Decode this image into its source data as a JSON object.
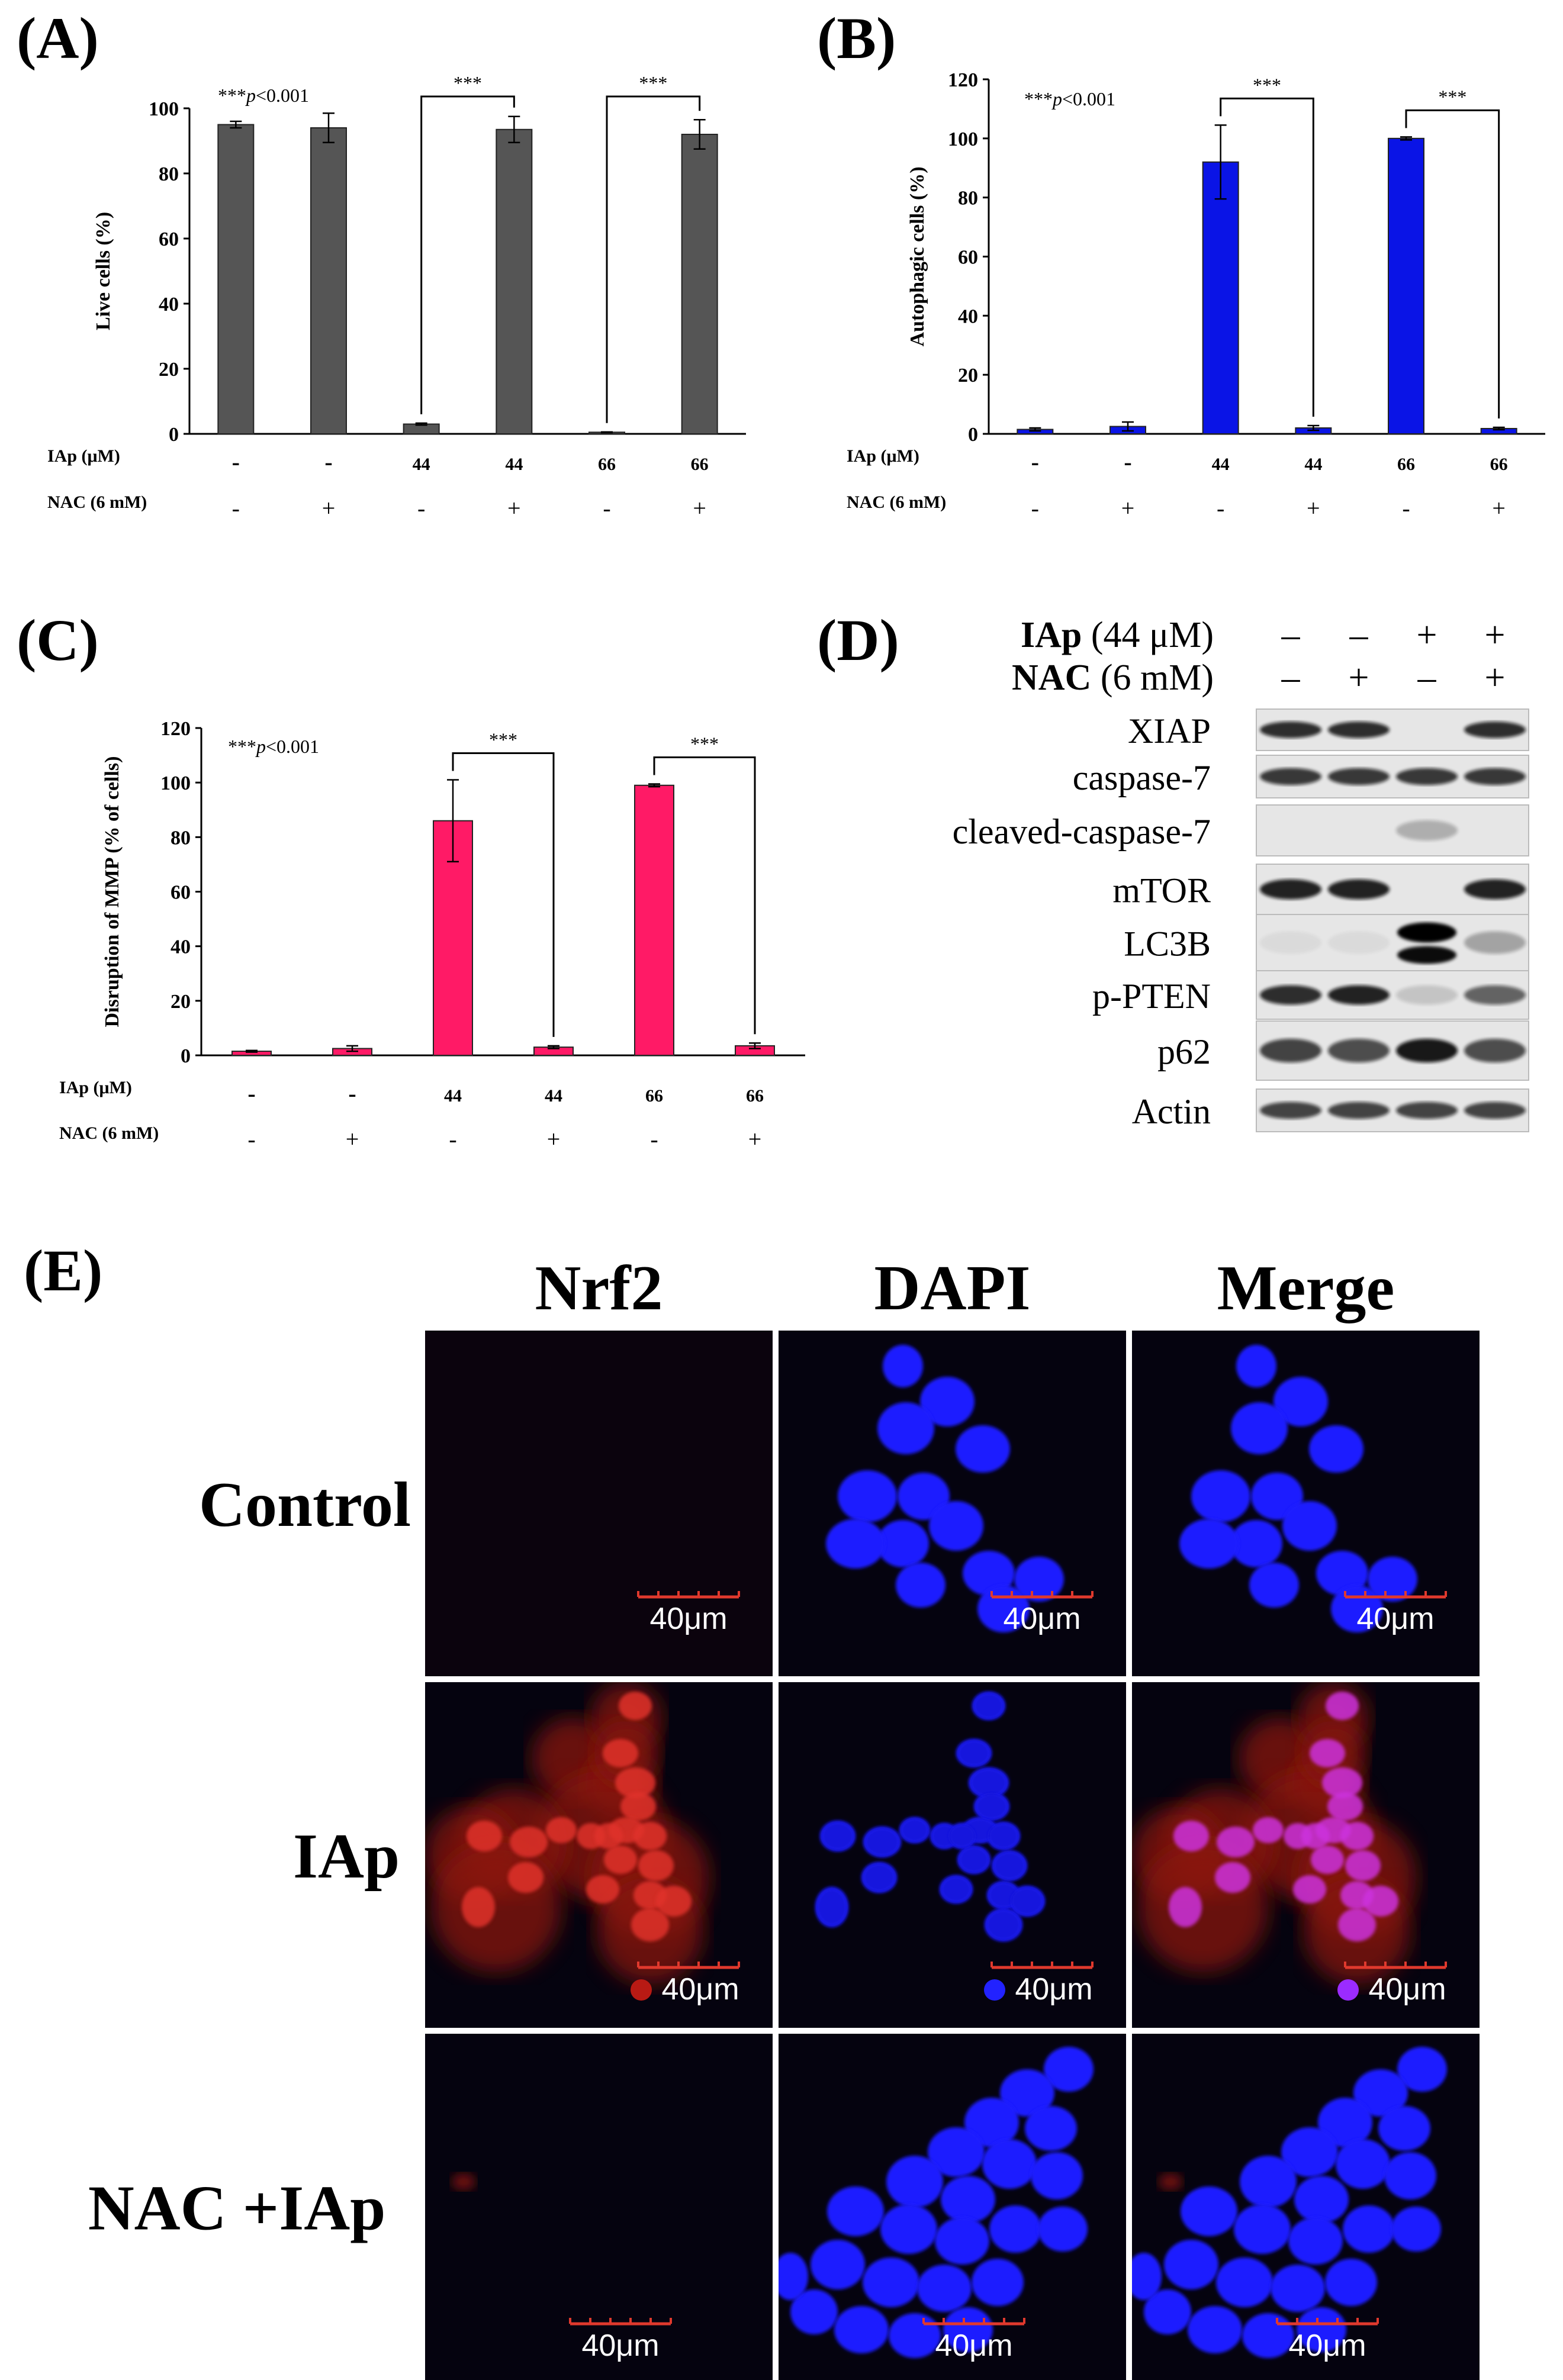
{
  "colors": {
    "panel_a_bar": "#555555",
    "panel_b_bar": "#0a14e6",
    "panel_c_bar": "#ff1a66",
    "scale_bar": "#e0392d",
    "micro_bg": "#05030f",
    "nucleus_blue": "#1a1aff",
    "nrf2_red": "#c8221e",
    "merge_purple": "#8a2be2"
  },
  "chart_data": [
    {
      "panel": "(A)",
      "type": "bar",
      "ylabel": "Live cells (%)",
      "ylim": [
        0,
        100
      ],
      "yticks": [
        0,
        20,
        40,
        60,
        80,
        100
      ],
      "row_labels": [
        "IAp  (μM)",
        "NAC (6 mM)"
      ],
      "iap": [
        "-",
        "-",
        "44",
        "44",
        "66",
        "66"
      ],
      "nac": [
        "-",
        "+",
        "-",
        "+",
        "-",
        "+"
      ],
      "values": [
        95,
        94,
        3,
        93.5,
        0.5,
        92
      ],
      "errors": [
        1,
        4.5,
        0.3,
        4,
        0.1,
        4.5
      ],
      "annotation": "***p<0.001",
      "sig_label": "***",
      "brackets": [
        [
          2,
          3
        ],
        [
          4,
          5
        ]
      ]
    },
    {
      "panel": "(B)",
      "type": "bar",
      "ylabel": "Autophagic cells (%)",
      "ylim": [
        0,
        120
      ],
      "yticks": [
        0,
        20,
        40,
        60,
        80,
        100,
        120
      ],
      "row_labels": [
        "IAp  (μM)",
        "NAC (6 mM)"
      ],
      "iap": [
        "-",
        "-",
        "44",
        "44",
        "66",
        "66"
      ],
      "nac": [
        "-",
        "+",
        "-",
        "+",
        "-",
        "+"
      ],
      "values": [
        1.5,
        2.5,
        92,
        2,
        100,
        1.8
      ],
      "errors": [
        0.5,
        1.5,
        12.5,
        0.8,
        0.5,
        0.4
      ],
      "annotation": "***p<0.001",
      "sig_label": "***",
      "brackets": [
        [
          2,
          3
        ],
        [
          4,
          5
        ]
      ]
    },
    {
      "panel": "(C)",
      "type": "bar",
      "ylabel": "Disruption of MMP (% of cells)",
      "ylim": [
        0,
        120
      ],
      "yticks": [
        0,
        20,
        40,
        60,
        80,
        100,
        120
      ],
      "row_labels": [
        "IAp (μM)",
        "NAC (6 mM)"
      ],
      "iap": [
        "-",
        "-",
        "44",
        "44",
        "66",
        "66"
      ],
      "nac": [
        "-",
        "+",
        "-",
        "+",
        "-",
        "+"
      ],
      "values": [
        1.5,
        2.5,
        86,
        3,
        99,
        3.5
      ],
      "errors": [
        0.3,
        1,
        15,
        0.5,
        0.5,
        1
      ],
      "annotation": "***p<0.001",
      "sig_label": "***",
      "brackets": [
        [
          2,
          3
        ],
        [
          4,
          5
        ]
      ]
    }
  ],
  "panel_d": {
    "label": "(D)",
    "header_rows": [
      {
        "bold": "IAp",
        "rest": " (44 μM)",
        "signs": [
          "–",
          "–",
          "+",
          "+"
        ]
      },
      {
        "bold": "NAC",
        "rest": " (6 mM)",
        "signs": [
          "–",
          "+",
          "–",
          "+"
        ]
      }
    ],
    "proteins": [
      "XIAP",
      "caspase-7",
      "cleaved-caspase-7",
      "mTOR",
      "LC3B",
      "p-PTEN",
      "p62",
      "Actin"
    ],
    "band_intensity": [
      [
        0.85,
        0.85,
        0,
        0.85
      ],
      [
        0.8,
        0.8,
        0.8,
        0.8
      ],
      [
        0,
        0,
        0.25,
        0
      ],
      [
        0.9,
        0.9,
        0,
        0.9
      ],
      [
        0.05,
        0.05,
        1,
        0.3
      ],
      [
        0.85,
        0.9,
        0.15,
        0.6
      ],
      [
        0.75,
        0.7,
        0.95,
        0.7
      ],
      [
        0.75,
        0.75,
        0.75,
        0.75
      ]
    ]
  },
  "panel_e": {
    "label": "(E)",
    "columns": [
      "Nrf2",
      "DAPI",
      "Merge"
    ],
    "rows": [
      "Control",
      "IAp",
      "NAC +IAp"
    ],
    "scale_label": "40μm"
  }
}
